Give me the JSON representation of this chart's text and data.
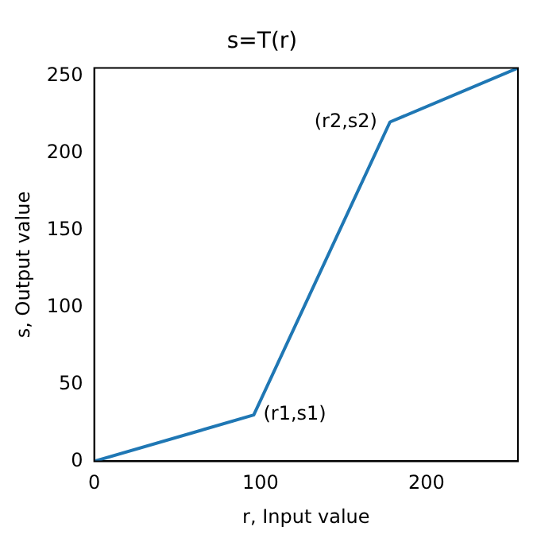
{
  "chart_data": {
    "type": "line",
    "title": "s=T(r)",
    "xlabel": "r, Input value",
    "ylabel": "s, Output value",
    "x": [
      0,
      96,
      178,
      255
    ],
    "series": [
      {
        "color": "#1f77b4",
        "values": [
          0,
          30,
          220,
          255
        ]
      }
    ],
    "xlim": [
      0,
      255
    ],
    "ylim": [
      0,
      255
    ],
    "xticks": [
      0,
      100,
      200
    ],
    "yticks": [
      0,
      50,
      100,
      150,
      200,
      250
    ],
    "grid": false,
    "marker": "none",
    "line_style": "solid",
    "annotations": [
      {
        "text": "(r1,s1)",
        "x": 96,
        "y": 30
      },
      {
        "text": "(r2,s2)",
        "x": 178,
        "y": 220
      }
    ]
  }
}
